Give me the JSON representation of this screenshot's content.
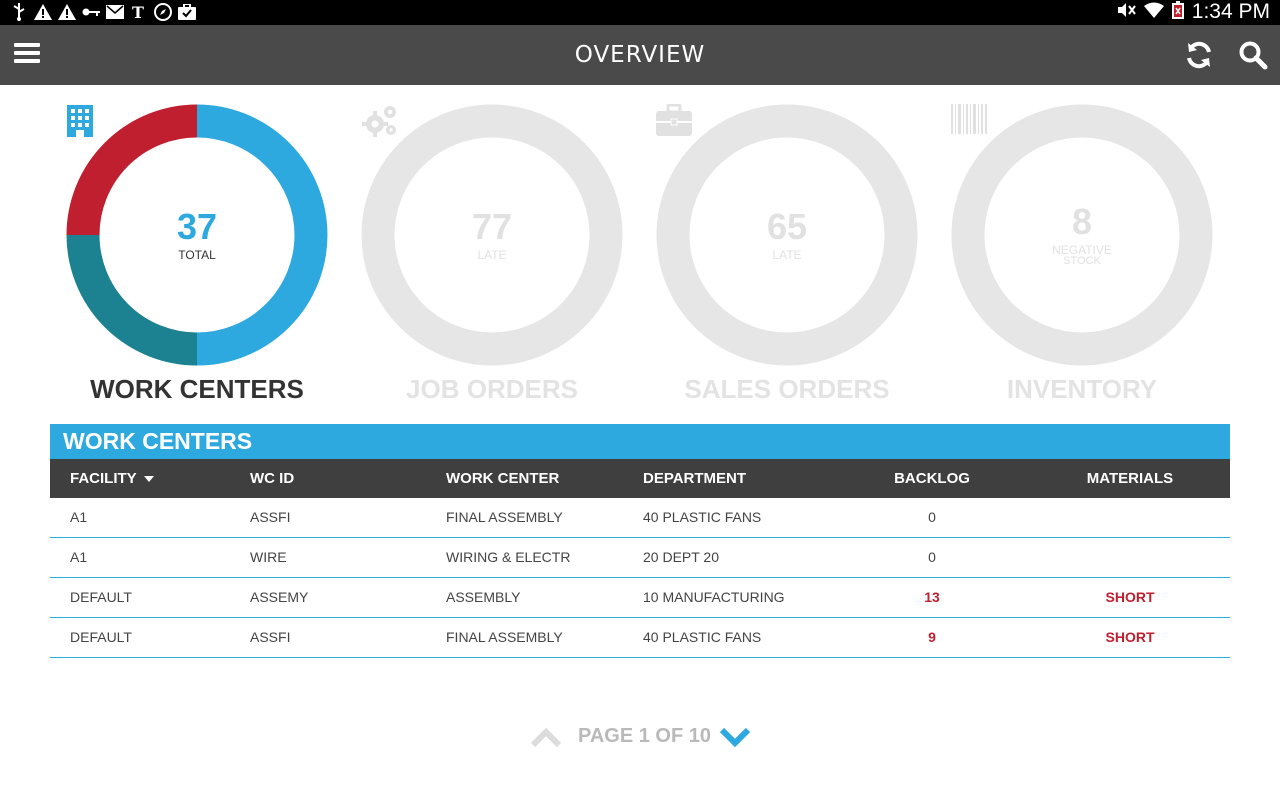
{
  "app": {
    "title": "OVERVIEW",
    "status_time": "1:34 PM"
  },
  "colors": {
    "accent": "#2ea9e0",
    "red": "#c01f2f",
    "teal": "#1c8190",
    "actionbar": "#4a4a4a",
    "inactive": "#e3e3e3"
  },
  "summary_cards": [
    {
      "number": "37",
      "sub": "TOTAL",
      "label": "WORK CENTERS",
      "icon": "building-icon",
      "active": true
    },
    {
      "number": "77",
      "sub": "LATE",
      "label": "JOB ORDERS",
      "icon": "gears-icon",
      "active": false
    },
    {
      "number": "65",
      "sub": "LATE",
      "label": "SALES ORDERS",
      "icon": "briefcase-icon",
      "active": false
    },
    {
      "number": "8",
      "sub": "NEGATIVE",
      "sub2": "STOCK",
      "label": "INVENTORY",
      "icon": "barcode-icon",
      "active": false
    }
  ],
  "work_centers_donut": {
    "segments": [
      {
        "name": "blue",
        "fraction": 0.5,
        "color": "#2ea9e0"
      },
      {
        "name": "teal",
        "fraction": 0.25,
        "color": "#1c8190"
      },
      {
        "name": "red",
        "fraction": 0.25,
        "color": "#c01f2f"
      }
    ]
  },
  "table": {
    "title": "WORK CENTERS",
    "columns": [
      "FACILITY",
      "WC ID",
      "WORK CENTER",
      "DEPARTMENT",
      "BACKLOG",
      "MATERIALS"
    ],
    "rows": [
      {
        "facility": "A1",
        "wc_id": "ASSFI",
        "work_center": "FINAL ASSEMBLY",
        "department": "40 PLASTIC FANS",
        "backlog": "0",
        "materials": ""
      },
      {
        "facility": "A1",
        "wc_id": "WIRE",
        "work_center": "WIRING & ELECTR",
        "department": "20 DEPT 20",
        "backlog": "0",
        "materials": ""
      },
      {
        "facility": "DEFAULT",
        "wc_id": "ASSEMY",
        "work_center": "ASSEMBLY",
        "department": "10 MANUFACTURING",
        "backlog": "13",
        "materials": "SHORT"
      },
      {
        "facility": "DEFAULT",
        "wc_id": "ASSFI",
        "work_center": "FINAL ASSEMBLY",
        "department": "40 PLASTIC FANS",
        "backlog": "9",
        "materials": "SHORT"
      }
    ]
  },
  "pager": {
    "label": "PAGE 1 OF 10"
  }
}
